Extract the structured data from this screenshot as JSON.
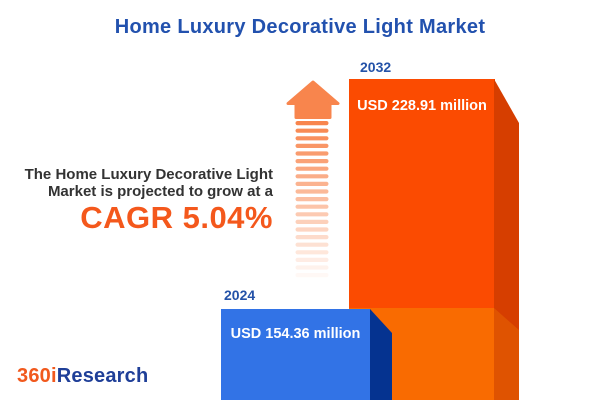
{
  "title": "Home Luxury Decorative Light Market",
  "description": {
    "line1": "The Home Luxury Decorative Light",
    "line2": "Market is projected to grow at a",
    "cagr": "CAGR 5.04%"
  },
  "bars": [
    {
      "year": "2024",
      "value_label": "USD 154.36 million",
      "face_color": "#3273E6",
      "side_color": "#053390"
    },
    {
      "year": "2032",
      "value_label": "USD 228.91 million",
      "face_color_top": "#FB4B01",
      "face_color_bottom": "#F96B01",
      "side_color_top": "#D63E00",
      "side_color_bottom": "#DF5301"
    }
  ],
  "logo": {
    "part1": "360i",
    "part2": "Research"
  },
  "colors": {
    "title_blue": "#2251AE",
    "year_label_blue": "#2452A8",
    "body_text": "#333333",
    "cagr_orange": "#F4581C",
    "arrow_head": "#F8854D",
    "logo_orange": "#F1591D",
    "logo_blue": "#1F3F98",
    "value_text": "#FFFFFF"
  },
  "chart_data": {
    "type": "bar",
    "categories": [
      "2024",
      "2032"
    ],
    "values": [
      154.36,
      228.91
    ],
    "unit": "USD million",
    "title": "Home Luxury Decorative Light Market",
    "data_labels": [
      "USD 154.36 million",
      "USD 228.91 million"
    ],
    "annotations": [
      "The Home Luxury Decorative Light Market is projected to grow at a CAGR 5.04%"
    ],
    "bar_colors": [
      "#3273E6",
      "#FB4B01"
    ],
    "legend": "off",
    "grid": "off",
    "style": "3d-infographic-bars, growth arrow between bars"
  }
}
